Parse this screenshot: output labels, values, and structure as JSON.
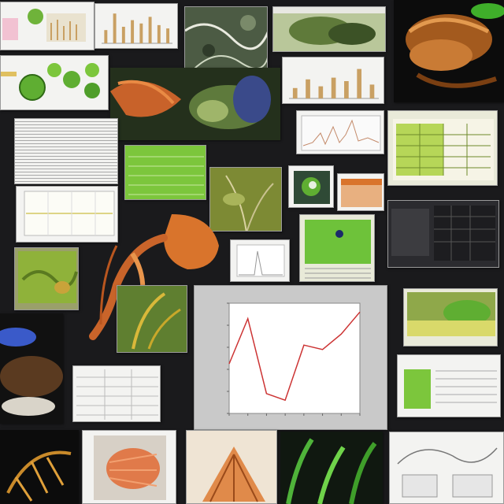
{
  "main_chart": {
    "title": "",
    "type": "line",
    "line_color": "#cc3333"
  },
  "chart_data": {
    "type": "line",
    "x": [
      0,
      1,
      2,
      3,
      4,
      5,
      6,
      7
    ],
    "y": [
      0.45,
      0.86,
      0.18,
      0.12,
      0.62,
      0.58,
      0.72,
      0.92
    ],
    "ylim": [
      0,
      1
    ],
    "title": "",
    "xlabel": "",
    "ylabel": ""
  },
  "bars_small": [
    0.4,
    0.9,
    0.5,
    0.7,
    0.6,
    0.8,
    0.55,
    0.45
  ],
  "bars_mid": [
    0.3,
    0.55,
    0.35,
    0.6,
    0.5,
    0.85,
    0.4
  ],
  "colors": {
    "background": "#1a1a1c",
    "panel_gray": "#c9c9c9",
    "accent_green": "#7cc63c",
    "accent_orange": "#d9742c",
    "bar_tan": "#c9a063"
  }
}
